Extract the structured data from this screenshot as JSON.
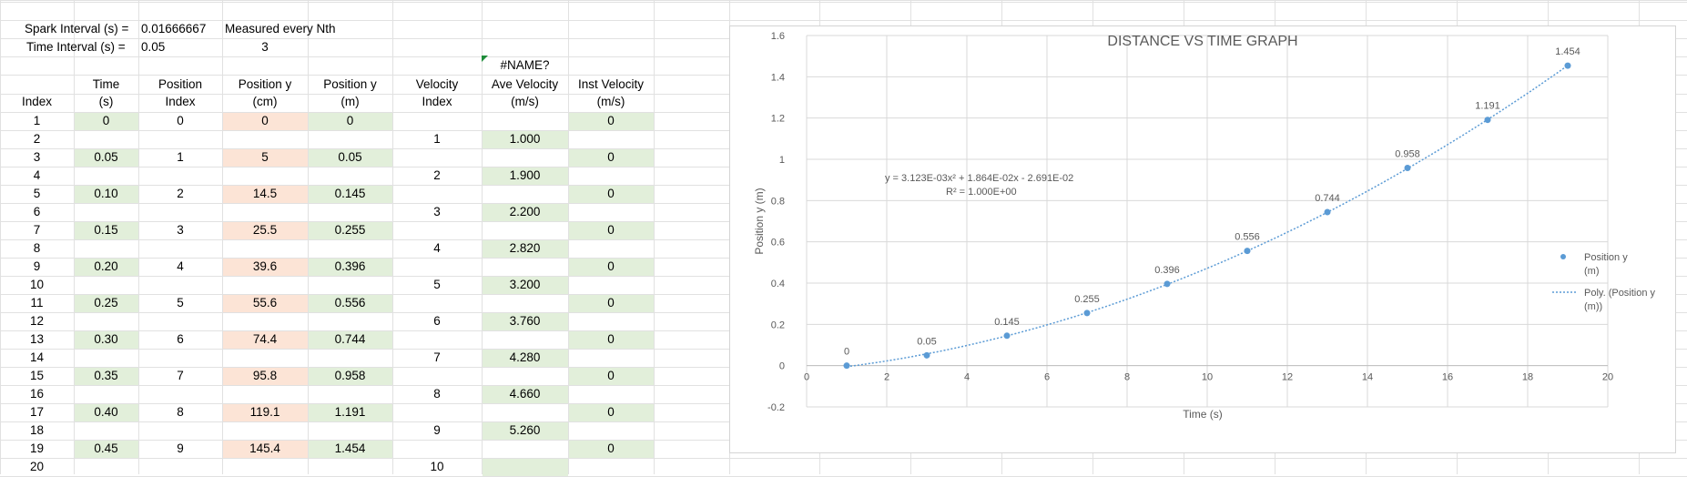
{
  "info": {
    "spark_label": "Spark Interval (s) =",
    "spark_value": "0.01666667",
    "time_label": "Time Interval (s) =",
    "time_value": "0.05",
    "measured_label": "Measured every Nth",
    "measured_value": "3",
    "error_text": "#NAME?"
  },
  "headers": {
    "index": [
      "",
      "Index"
    ],
    "time": [
      "Time",
      "(s)"
    ],
    "posindex": [
      "Position",
      "Index"
    ],
    "poscm": [
      "Position y",
      "(cm)"
    ],
    "posm": [
      "Position y",
      "(m)"
    ],
    "velindex": [
      "Velocity",
      "Index"
    ],
    "avevel": [
      "Ave Velocity",
      "(m/s)"
    ],
    "instvel": [
      "Inst Velocity",
      "(m/s)"
    ]
  },
  "rows": [
    {
      "index": "1",
      "time": "0",
      "posindex": "0",
      "poscm": "0",
      "posm": "0",
      "velindex": "",
      "avevel": "",
      "instvel": "0"
    },
    {
      "index": "2",
      "time": "",
      "posindex": "",
      "poscm": "",
      "posm": "",
      "velindex": "1",
      "avevel": "1.000",
      "instvel": ""
    },
    {
      "index": "3",
      "time": "0.05",
      "posindex": "1",
      "poscm": "5",
      "posm": "0.05",
      "velindex": "",
      "avevel": "",
      "instvel": "0"
    },
    {
      "index": "4",
      "time": "",
      "posindex": "",
      "poscm": "",
      "posm": "",
      "velindex": "2",
      "avevel": "1.900",
      "instvel": ""
    },
    {
      "index": "5",
      "time": "0.10",
      "posindex": "2",
      "poscm": "14.5",
      "posm": "0.145",
      "velindex": "",
      "avevel": "",
      "instvel": "0"
    },
    {
      "index": "6",
      "time": "",
      "posindex": "",
      "poscm": "",
      "posm": "",
      "velindex": "3",
      "avevel": "2.200",
      "instvel": ""
    },
    {
      "index": "7",
      "time": "0.15",
      "posindex": "3",
      "poscm": "25.5",
      "posm": "0.255",
      "velindex": "",
      "avevel": "",
      "instvel": "0"
    },
    {
      "index": "8",
      "time": "",
      "posindex": "",
      "poscm": "",
      "posm": "",
      "velindex": "4",
      "avevel": "2.820",
      "instvel": ""
    },
    {
      "index": "9",
      "time": "0.20",
      "posindex": "4",
      "poscm": "39.6",
      "posm": "0.396",
      "velindex": "",
      "avevel": "",
      "instvel": "0"
    },
    {
      "index": "10",
      "time": "",
      "posindex": "",
      "poscm": "",
      "posm": "",
      "velindex": "5",
      "avevel": "3.200",
      "instvel": ""
    },
    {
      "index": "11",
      "time": "0.25",
      "posindex": "5",
      "poscm": "55.6",
      "posm": "0.556",
      "velindex": "",
      "avevel": "",
      "instvel": "0"
    },
    {
      "index": "12",
      "time": "",
      "posindex": "",
      "poscm": "",
      "posm": "",
      "velindex": "6",
      "avevel": "3.760",
      "instvel": ""
    },
    {
      "index": "13",
      "time": "0.30",
      "posindex": "6",
      "poscm": "74.4",
      "posm": "0.744",
      "velindex": "",
      "avevel": "",
      "instvel": "0"
    },
    {
      "index": "14",
      "time": "",
      "posindex": "",
      "poscm": "",
      "posm": "",
      "velindex": "7",
      "avevel": "4.280",
      "instvel": ""
    },
    {
      "index": "15",
      "time": "0.35",
      "posindex": "7",
      "poscm": "95.8",
      "posm": "0.958",
      "velindex": "",
      "avevel": "",
      "instvel": "0"
    },
    {
      "index": "16",
      "time": "",
      "posindex": "",
      "poscm": "",
      "posm": "",
      "velindex": "8",
      "avevel": "4.660",
      "instvel": ""
    },
    {
      "index": "17",
      "time": "0.40",
      "posindex": "8",
      "poscm": "119.1",
      "posm": "1.191",
      "velindex": "",
      "avevel": "",
      "instvel": "0"
    },
    {
      "index": "18",
      "time": "",
      "posindex": "",
      "poscm": "",
      "posm": "",
      "velindex": "9",
      "avevel": "5.260",
      "instvel": ""
    },
    {
      "index": "19",
      "time": "0.45",
      "posindex": "9",
      "poscm": "145.4",
      "posm": "1.454",
      "velindex": "",
      "avevel": "",
      "instvel": "0"
    },
    {
      "index": "20",
      "time": "",
      "posindex": "",
      "poscm": "",
      "posm": "",
      "velindex": "10",
      "avevel": "",
      "instvel": ""
    }
  ],
  "colors": {
    "green_fill": "#e2efda",
    "orange_fill": "#fce4d6",
    "gridline": "#e1e1e1",
    "series": "#5b9bd5",
    "chart_grid": "#d9d9d9",
    "chart_text": "#595959"
  },
  "chart_data": {
    "type": "scatter",
    "title": "DISTANCE VS TIME GRAPH",
    "xlabel": "Time (s)",
    "ylabel": "Position y (m)",
    "xlim": [
      0,
      20
    ],
    "ylim": [
      -0.2,
      1.6
    ],
    "xticks": [
      0,
      2,
      4,
      6,
      8,
      10,
      12,
      14,
      16,
      18,
      20
    ],
    "yticks": [
      -0.2,
      0,
      0.2,
      0.4,
      0.6,
      0.8,
      1,
      1.2,
      1.4,
      1.6
    ],
    "grid": true,
    "legend_position": "right",
    "series": [
      {
        "name": "Position y (m)",
        "x": [
          1,
          3,
          5,
          7,
          9,
          11,
          13,
          15,
          17,
          19
        ],
        "y": [
          0,
          0.05,
          0.145,
          0.255,
          0.396,
          0.556,
          0.744,
          0.958,
          1.191,
          1.454
        ],
        "labels": [
          "0",
          "0.05",
          "0.145",
          "0.255",
          "0.396",
          "0.556",
          "0.744",
          "0.958",
          "1.191",
          "1.454"
        ]
      }
    ],
    "trendline": {
      "name": "Poly. (Position y (m))",
      "type": "polynomial",
      "coefficients": [
        0.003123,
        0.01864,
        -0.02691
      ],
      "equation": "y = 3.123E-03x² + 1.864E-02x - 2.691E-02",
      "r_squared": "R² = 1.000E+00"
    },
    "legend": [
      "Position y",
      "(m)",
      "Poly. (Position y",
      "(m))"
    ]
  }
}
